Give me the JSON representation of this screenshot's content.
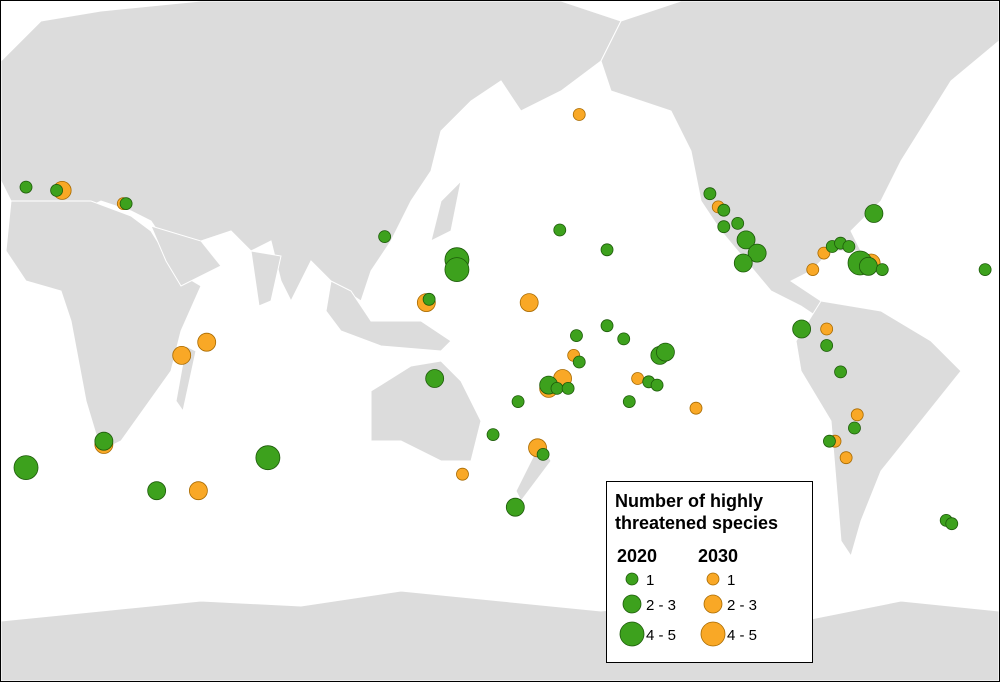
{
  "legend": {
    "title": "Number of highly threatened species",
    "columns": [
      {
        "year": "2020",
        "color": "#3da11d"
      },
      {
        "year": "2030",
        "color": "#f9a826"
      }
    ],
    "classes": [
      "1",
      "2 - 3",
      "4 - 5"
    ]
  },
  "points": [
    {
      "lon": 6,
      "lat": 42,
      "year": "2030",
      "class": "2 - 3"
    },
    {
      "lon": 28,
      "lat": 38,
      "year": "2030",
      "class": "1"
    },
    {
      "lon": 49,
      "lat": -8,
      "year": "2030",
      "class": "2 - 3"
    },
    {
      "lon": 58,
      "lat": -4,
      "year": "2030",
      "class": "2 - 3"
    },
    {
      "lon": 55,
      "lat": -49,
      "year": "2030",
      "class": "2 - 3"
    },
    {
      "lon": 137,
      "lat": 8,
      "year": "2030",
      "class": "2 - 3"
    },
    {
      "lon": 174,
      "lat": 8,
      "year": "2030",
      "class": "2 - 3"
    },
    {
      "lon": -168,
      "lat": 65,
      "year": "2030",
      "class": "1"
    },
    {
      "lon": -179,
      "lat": -18,
      "year": "2030",
      "class": "2 - 3"
    },
    {
      "lon": -174,
      "lat": -15,
      "year": "2030",
      "class": "2 - 3"
    },
    {
      "lon": 177,
      "lat": -36,
      "year": "2030",
      "class": "2 - 3"
    },
    {
      "lon": -170,
      "lat": -8,
      "year": "2030",
      "class": "1"
    },
    {
      "lon": -147,
      "lat": -15,
      "year": "2030",
      "class": "1"
    },
    {
      "lon": -126,
      "lat": -24,
      "year": "2030",
      "class": "1"
    },
    {
      "lon": -118,
      "lat": 37,
      "year": "2030",
      "class": "1"
    },
    {
      "lon": -84,
      "lat": 18,
      "year": "2030",
      "class": "1"
    },
    {
      "lon": -80,
      "lat": 23,
      "year": "2030",
      "class": "1"
    },
    {
      "lon": -79,
      "lat": 0,
      "year": "2030",
      "class": "1"
    },
    {
      "lon": -76,
      "lat": -34,
      "year": "2030",
      "class": "1"
    },
    {
      "lon": -68,
      "lat": -26,
      "year": "2030",
      "class": "1"
    },
    {
      "lon": -72,
      "lat": -39,
      "year": "2030",
      "class": "1"
    },
    {
      "lon": 150,
      "lat": -44,
      "year": "2030",
      "class": "1"
    },
    {
      "lon": -63,
      "lat": 20,
      "year": "2030",
      "class": "2 - 3"
    },
    {
      "lon": 21,
      "lat": -35,
      "year": "2030",
      "class": "2 - 3"
    },
    {
      "lon": -7,
      "lat": 43,
      "year": "2020",
      "class": "1"
    },
    {
      "lon": 4,
      "lat": 42,
      "year": "2020",
      "class": "1"
    },
    {
      "lon": 29,
      "lat": 38,
      "year": "2020",
      "class": "1"
    },
    {
      "lon": 122,
      "lat": 28,
      "year": "2020",
      "class": "1"
    },
    {
      "lon": 148,
      "lat": 21,
      "year": "2020",
      "class": "4 - 5"
    },
    {
      "lon": 148,
      "lat": 18,
      "year": "2020",
      "class": "4 - 5"
    },
    {
      "lon": 138,
      "lat": 9,
      "year": "2020",
      "class": "1"
    },
    {
      "lon": 140,
      "lat": -15,
      "year": "2020",
      "class": "2 - 3"
    },
    {
      "lon": 21,
      "lat": -34,
      "year": "2020",
      "class": "2 - 3"
    },
    {
      "lon": -7,
      "lat": -42,
      "year": "2020",
      "class": "4 - 5"
    },
    {
      "lon": 40,
      "lat": -49,
      "year": "2020",
      "class": "2 - 3"
    },
    {
      "lon": 80,
      "lat": -39,
      "year": "2020",
      "class": "4 - 5"
    },
    {
      "lon": 161,
      "lat": -32,
      "year": "2020",
      "class": "1"
    },
    {
      "lon": 169,
      "lat": -54,
      "year": "2020",
      "class": "2 - 3"
    },
    {
      "lon": 170,
      "lat": -22,
      "year": "2020",
      "class": "1"
    },
    {
      "lon": 179,
      "lat": -38,
      "year": "2020",
      "class": "1"
    },
    {
      "lon": -179,
      "lat": -17,
      "year": "2020",
      "class": "2 - 3"
    },
    {
      "lon": -176,
      "lat": -18,
      "year": "2020",
      "class": "1"
    },
    {
      "lon": -172,
      "lat": -18,
      "year": "2020",
      "class": "1"
    },
    {
      "lon": -169,
      "lat": -2,
      "year": "2020",
      "class": "1"
    },
    {
      "lon": -168,
      "lat": -10,
      "year": "2020",
      "class": "1"
    },
    {
      "lon": -175,
      "lat": 30,
      "year": "2020",
      "class": "1"
    },
    {
      "lon": -158,
      "lat": 24,
      "year": "2020",
      "class": "1"
    },
    {
      "lon": -158,
      "lat": 1,
      "year": "2020",
      "class": "1"
    },
    {
      "lon": -152,
      "lat": -3,
      "year": "2020",
      "class": "1"
    },
    {
      "lon": -150,
      "lat": -22,
      "year": "2020",
      "class": "1"
    },
    {
      "lon": -139,
      "lat": -8,
      "year": "2020",
      "class": "2 - 3"
    },
    {
      "lon": -137,
      "lat": -7,
      "year": "2020",
      "class": "2 - 3"
    },
    {
      "lon": -143,
      "lat": -16,
      "year": "2020",
      "class": "1"
    },
    {
      "lon": -140,
      "lat": -17,
      "year": "2020",
      "class": "1"
    },
    {
      "lon": -121,
      "lat": 41,
      "year": "2020",
      "class": "1"
    },
    {
      "lon": -116,
      "lat": 36,
      "year": "2020",
      "class": "1"
    },
    {
      "lon": -116,
      "lat": 31,
      "year": "2020",
      "class": "1"
    },
    {
      "lon": -111,
      "lat": 32,
      "year": "2020",
      "class": "1"
    },
    {
      "lon": -108,
      "lat": 27,
      "year": "2020",
      "class": "2 - 3"
    },
    {
      "lon": -104,
      "lat": 23,
      "year": "2020",
      "class": "2 - 3"
    },
    {
      "lon": -109,
      "lat": 20,
      "year": "2020",
      "class": "2 - 3"
    },
    {
      "lon": -88,
      "lat": 0,
      "year": "2020",
      "class": "2 - 3"
    },
    {
      "lon": -79,
      "lat": -5,
      "year": "2020",
      "class": "1"
    },
    {
      "lon": -74,
      "lat": -13,
      "year": "2020",
      "class": "1"
    },
    {
      "lon": -69,
      "lat": -30,
      "year": "2020",
      "class": "1"
    },
    {
      "lon": -78,
      "lat": -34,
      "year": "2020",
      "class": "1"
    },
    {
      "lon": -77,
      "lat": 25,
      "year": "2020",
      "class": "1"
    },
    {
      "lon": -74,
      "lat": 26,
      "year": "2020",
      "class": "1"
    },
    {
      "lon": -71,
      "lat": 25,
      "year": "2020",
      "class": "1"
    },
    {
      "lon": -67,
      "lat": 20,
      "year": "2020",
      "class": "4 - 5"
    },
    {
      "lon": -64,
      "lat": 19,
      "year": "2020",
      "class": "2 - 3"
    },
    {
      "lon": -59,
      "lat": 18,
      "year": "2020",
      "class": "1"
    },
    {
      "lon": -62,
      "lat": 35,
      "year": "2020",
      "class": "2 - 3"
    },
    {
      "lon": -22,
      "lat": 18,
      "year": "2020",
      "class": "1"
    },
    {
      "lon": -36,
      "lat": -58,
      "year": "2020",
      "class": "1"
    },
    {
      "lon": -34,
      "lat": -59,
      "year": "2020",
      "class": "1"
    }
  ]
}
